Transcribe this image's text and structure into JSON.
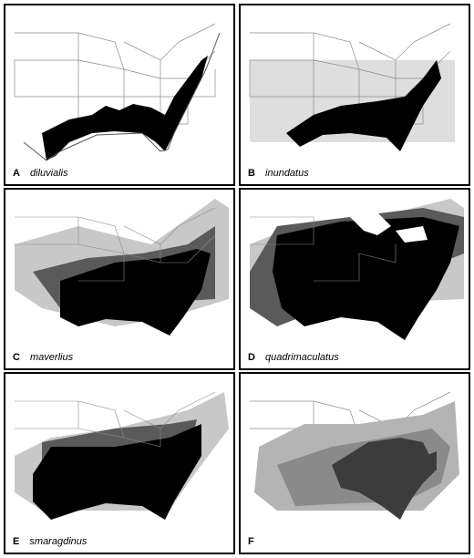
{
  "figure": {
    "panels": [
      {
        "letter": "A",
        "species": "diluvialis"
      },
      {
        "letter": "B",
        "species": "inundatus"
      },
      {
        "letter": "C",
        "species": "maverlius"
      },
      {
        "letter": "D",
        "species": "quadrimaculatus"
      },
      {
        "letter": "E",
        "species": "smaragdinus"
      },
      {
        "letter": "F",
        "species": ""
      }
    ],
    "colors": {
      "high": "#000000",
      "medium": "#5a5a5a",
      "low": "#c8c8c8",
      "border": "#8c8c8c",
      "ecoregion_dark": "#3c3c3c",
      "ecoregion_mid": "#8a8a8a",
      "ecoregion_light": "#b4b4b4"
    }
  }
}
